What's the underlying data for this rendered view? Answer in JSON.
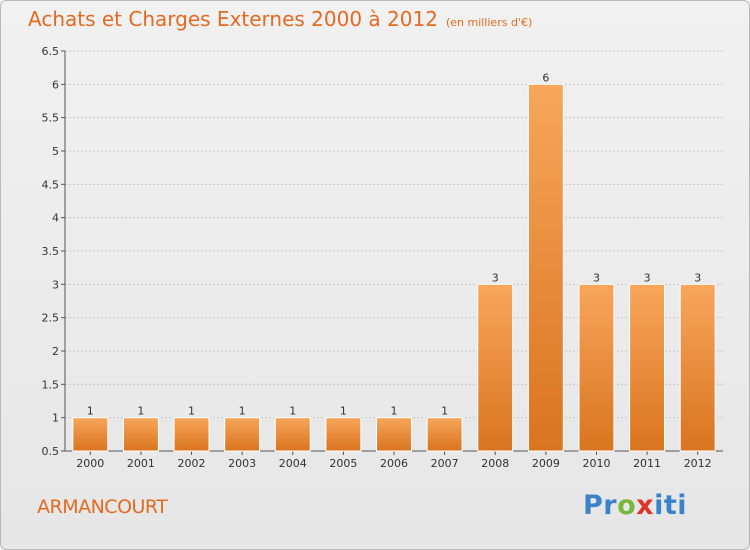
{
  "header": {
    "title": "Achats et Charges Externes 2000 à 2012",
    "subtitle": "(en milliers d'€)"
  },
  "footer": {
    "commune": "ARMANCOURT",
    "logo": {
      "p": "Pr",
      "o": "o",
      "x": "x",
      "i": "iti"
    }
  },
  "colors": {
    "title": "#e46a20",
    "bar_light": "#f7a65a",
    "bar_dark": "#d9741f",
    "grid": "#c8c8c8"
  },
  "chart_data": {
    "type": "bar",
    "title": "Achats et Charges Externes 2000 à 2012",
    "subtitle": "(en milliers d'€)",
    "categories": [
      "2000",
      "2001",
      "2002",
      "2003",
      "2004",
      "2005",
      "2006",
      "2007",
      "2008",
      "2009",
      "2010",
      "2011",
      "2012"
    ],
    "values": [
      1,
      1,
      1,
      1,
      1,
      1,
      1,
      1,
      3,
      6,
      3,
      3,
      3
    ],
    "data_labels": [
      "1",
      "1",
      "1",
      "1",
      "1",
      "1",
      "1",
      "1",
      "3",
      "6",
      "3",
      "3",
      "3"
    ],
    "yticks": [
      "0.5",
      "1",
      "1.5",
      "2",
      "2.5",
      "3",
      "3.5",
      "4",
      "4.5",
      "5",
      "5.5",
      "6",
      "6.5"
    ],
    "ylim": [
      0.5,
      6.5
    ],
    "grid": true,
    "legend": "none"
  }
}
